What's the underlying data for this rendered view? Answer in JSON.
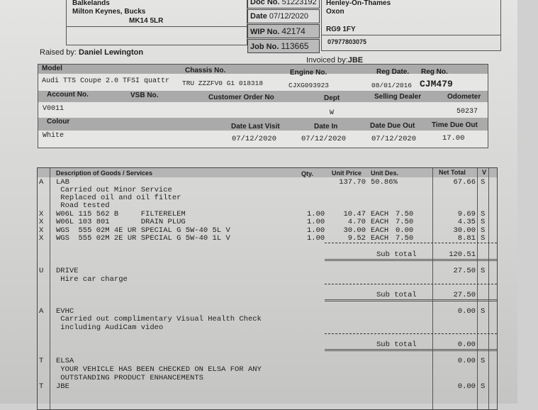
{
  "customer": {
    "line1": "Balkelands",
    "line2": "Milton Keynes, Bucks",
    "postcode": "MK14 5LR"
  },
  "doc": {
    "doc_label": "Doc No.",
    "doc_no": "51223192",
    "date_label": "Date",
    "date": "07/12/2020",
    "wip_label": "WIP No.",
    "wip": "42174",
    "job_label": "Job No.",
    "job": "113665"
  },
  "delivery": {
    "line1": "Henley-On-Thames",
    "line2": "Oxon",
    "postcode": "RG9 1FY",
    "phone": "07977803075"
  },
  "raised_by_label": "Raised by:",
  "raised_by": "Daniel Lewington",
  "invoiced_by_label": "Invoiced by:",
  "invoiced_by": "JBE",
  "vehicle": {
    "h1": [
      "Model",
      "Chassis No.",
      "Engine No.",
      "Reg Date.",
      "Reg No."
    ],
    "model": "Audi TTS Coupe 2.0 TFSI quattr",
    "chassis": "TRU ZZZFV0 G1 018318",
    "engine": "CJXG093923",
    "reg_date": "08/01/2016",
    "reg_no": "CJM479",
    "h2": [
      "Account No.",
      "VSB No.",
      "Customer Order No",
      "Dept",
      "Selling Dealer",
      "Odometer"
    ],
    "account": "V0011",
    "dept": "W",
    "odometer": "50237",
    "h3": [
      "Colour",
      "Date Last Visit",
      "Date In",
      "Date Due Out",
      "Time Due Out"
    ],
    "colour": "White",
    "date_last_visit": "07/12/2020",
    "date_in": "07/12/2020",
    "date_due_out": "07/12/2020",
    "time_due_out": "17.00"
  },
  "items": {
    "headers": [
      "Description of Goods / Services",
      "Qty.",
      "Unit Price",
      "Unit Des.",
      "Net Total",
      "V"
    ],
    "rows": [
      {
        "code": "A",
        "desc": "LAB",
        "qty": "",
        "price": "137.70",
        "unit": "50.86%",
        "disc": "",
        "net": "67.66",
        "v": "S"
      },
      {
        "code": "",
        "desc": " Carried out Minor Service"
      },
      {
        "code": "",
        "desc": " Replaced oil and oil filter"
      },
      {
        "code": "",
        "desc": " Road tested"
      },
      {
        "code": "X",
        "desc": "W06L 115 562 B     FILTERELEM",
        "qty": "1.00",
        "price": "10.47",
        "unit": "EACH",
        "disc": "7.50",
        "net": "9.69",
        "v": "S"
      },
      {
        "code": "X",
        "desc": "W06L 103 801       DRAIN PLUG",
        "qty": "1.00",
        "price": "4.70",
        "unit": "EACH",
        "disc": "7.50",
        "net": "4.35",
        "v": "S"
      },
      {
        "code": "X",
        "desc": "WGS  555 02M 4E UR SPECIAL G 5W-40 5L V",
        "qty": "1.00",
        "price": "30.00",
        "unit": "EACH",
        "disc": "0.00",
        "net": "30.00",
        "v": "S"
      },
      {
        "code": "X",
        "desc": "WGS  555 02M 2E UR SPECIAL G 5W-40 1L V",
        "qty": "1.00",
        "price": "9.52",
        "unit": "EACH",
        "disc": "7.50",
        "net": "8.81",
        "v": "S"
      },
      {
        "code": "U",
        "desc": "DRIVE",
        "net": "27.50",
        "v": "S"
      },
      {
        "code": "",
        "desc": " Hire car charge"
      },
      {
        "code": "A",
        "desc": "EVHC",
        "net": "0.00",
        "v": "S"
      },
      {
        "code": "",
        "desc": " Carried out complimentary Visual Health Check"
      },
      {
        "code": "",
        "desc": " including AudiCam video"
      },
      {
        "code": "T",
        "desc": "ELSA",
        "net": "0.00",
        "v": "S"
      },
      {
        "code": "",
        "desc": " YOUR VEHICLE HAS BEEN CHECKED ON ELSA FOR ANY"
      },
      {
        "code": "",
        "desc": " OUTSTANDING PRODUCT ENHANCEMENTS"
      },
      {
        "code": "T",
        "desc": "JBE",
        "net": "0.00",
        "v": "S"
      }
    ],
    "subtotal_label": "Sub total",
    "subtotals": [
      "120.51",
      "27.50",
      "0.00"
    ]
  }
}
